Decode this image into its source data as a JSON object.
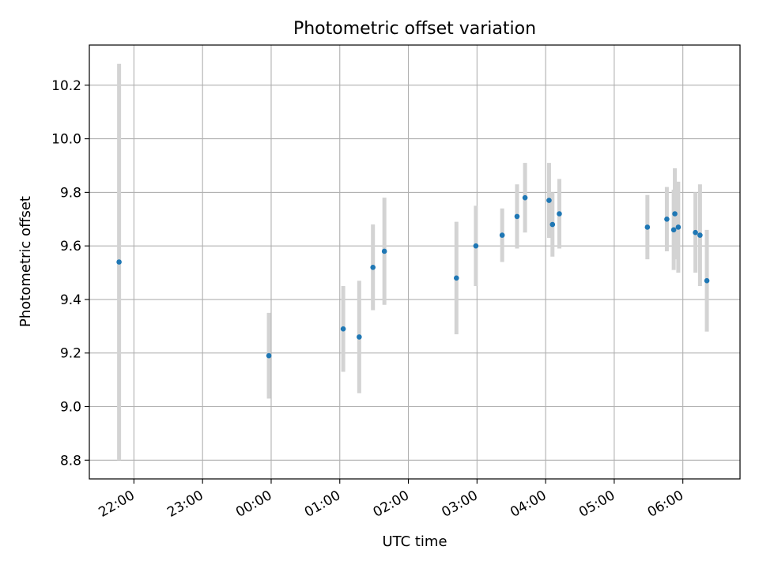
{
  "chart_data": {
    "type": "scatter",
    "title": "Photometric offset variation",
    "xlabel": "UTC time",
    "ylabel": "Photometric offset",
    "xlim": [
      "21:21",
      "06:50"
    ],
    "ylim": [
      8.73,
      10.35
    ],
    "x_ticks": [
      "22:00",
      "23:00",
      "00:00",
      "01:00",
      "02:00",
      "03:00",
      "04:00",
      "05:00",
      "06:00"
    ],
    "y_ticks": [
      "8.8",
      "9.0",
      "9.2",
      "9.4",
      "9.6",
      "9.8",
      "10.0",
      "10.2"
    ],
    "grid": true,
    "colors": {
      "point": "#1f77b4",
      "errorbar": "#d3d3d3",
      "grid": "#b0b0b0"
    },
    "points": [
      {
        "t": "21:47",
        "y": 9.54,
        "err": 0.74
      },
      {
        "t": "23:58",
        "y": 9.19,
        "err": 0.16
      },
      {
        "t": "01:03",
        "y": 9.29,
        "err": 0.16
      },
      {
        "t": "01:17",
        "y": 9.26,
        "err": 0.21
      },
      {
        "t": "01:29",
        "y": 9.52,
        "err": 0.16
      },
      {
        "t": "01:39",
        "y": 9.58,
        "err": 0.2
      },
      {
        "t": "02:42",
        "y": 9.48,
        "err": 0.21
      },
      {
        "t": "02:59",
        "y": 9.6,
        "err": 0.15
      },
      {
        "t": "03:22",
        "y": 9.64,
        "err": 0.1
      },
      {
        "t": "03:35",
        "y": 9.71,
        "err": 0.12
      },
      {
        "t": "03:42",
        "y": 9.78,
        "err": 0.13
      },
      {
        "t": "04:03",
        "y": 9.77,
        "err": 0.14
      },
      {
        "t": "04:06",
        "y": 9.68,
        "err": 0.12
      },
      {
        "t": "04:12",
        "y": 9.72,
        "err": 0.13
      },
      {
        "t": "05:29",
        "y": 9.67,
        "err": 0.12
      },
      {
        "t": "05:46",
        "y": 9.7,
        "err": 0.12
      },
      {
        "t": "05:52",
        "y": 9.66,
        "err": 0.15
      },
      {
        "t": "05:53",
        "y": 9.72,
        "err": 0.17
      },
      {
        "t": "05:56",
        "y": 9.67,
        "err": 0.17
      },
      {
        "t": "06:11",
        "y": 9.65,
        "err": 0.15
      },
      {
        "t": "06:15",
        "y": 9.64,
        "err": 0.19
      },
      {
        "t": "06:21",
        "y": 9.47,
        "err": 0.19
      }
    ]
  }
}
